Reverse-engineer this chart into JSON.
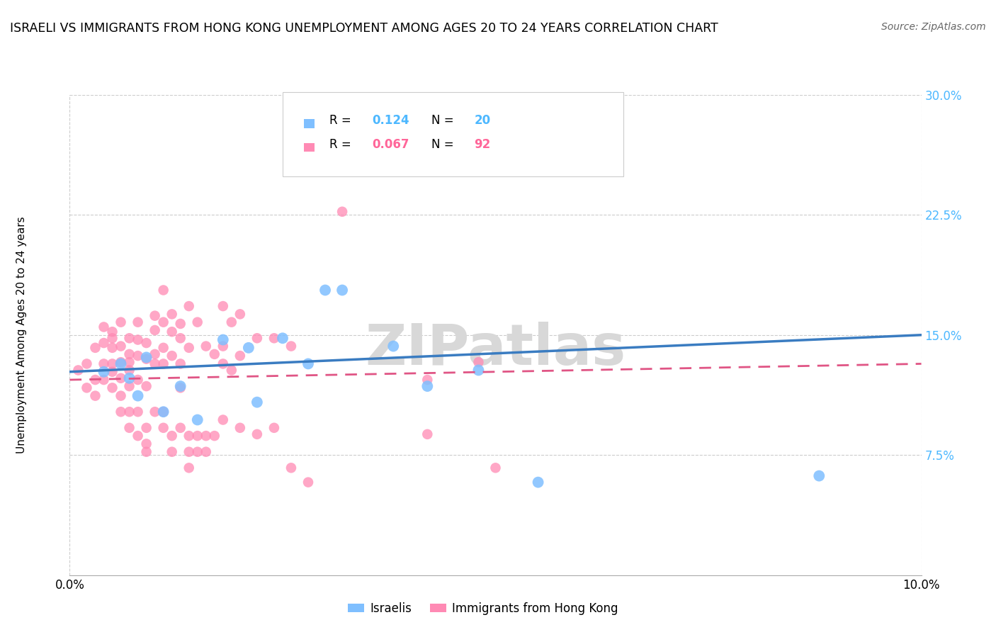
{
  "title": "ISRAELI VS IMMIGRANTS FROM HONG KONG UNEMPLOYMENT AMONG AGES 20 TO 24 YEARS CORRELATION CHART",
  "source": "Source: ZipAtlas.com",
  "ylabel": "Unemployment Among Ages 20 to 24 years",
  "xlim": [
    0.0,
    0.1
  ],
  "ylim": [
    0.0,
    0.3
  ],
  "ytick_values": [
    0.075,
    0.15,
    0.225,
    0.3
  ],
  "ytick_labels": [
    "7.5%",
    "15.0%",
    "22.5%",
    "30.0%"
  ],
  "xtick_values": [
    0.0,
    0.1
  ],
  "xtick_labels": [
    "0.0%",
    "10.0%"
  ],
  "israeli_color": "#7fbfff",
  "hk_color": "#ff8ab4",
  "watermark_text": "ZIPatlas",
  "watermark_color": "#d8d8d8",
  "israeli_points": [
    [
      0.004,
      0.127
    ],
    [
      0.006,
      0.132
    ],
    [
      0.007,
      0.123
    ],
    [
      0.008,
      0.112
    ],
    [
      0.009,
      0.136
    ],
    [
      0.011,
      0.102
    ],
    [
      0.013,
      0.118
    ],
    [
      0.015,
      0.097
    ],
    [
      0.018,
      0.147
    ],
    [
      0.021,
      0.142
    ],
    [
      0.022,
      0.108
    ],
    [
      0.025,
      0.148
    ],
    [
      0.028,
      0.132
    ],
    [
      0.03,
      0.178
    ],
    [
      0.032,
      0.178
    ],
    [
      0.038,
      0.143
    ],
    [
      0.042,
      0.118
    ],
    [
      0.048,
      0.128
    ],
    [
      0.055,
      0.058
    ],
    [
      0.088,
      0.062
    ]
  ],
  "hk_points": [
    [
      0.001,
      0.128
    ],
    [
      0.002,
      0.132
    ],
    [
      0.002,
      0.117
    ],
    [
      0.003,
      0.122
    ],
    [
      0.003,
      0.112
    ],
    [
      0.003,
      0.142
    ],
    [
      0.004,
      0.132
    ],
    [
      0.004,
      0.145
    ],
    [
      0.004,
      0.155
    ],
    [
      0.004,
      0.122
    ],
    [
      0.005,
      0.148
    ],
    [
      0.005,
      0.132
    ],
    [
      0.005,
      0.127
    ],
    [
      0.005,
      0.117
    ],
    [
      0.005,
      0.152
    ],
    [
      0.005,
      0.142
    ],
    [
      0.006,
      0.133
    ],
    [
      0.006,
      0.123
    ],
    [
      0.006,
      0.112
    ],
    [
      0.006,
      0.102
    ],
    [
      0.006,
      0.158
    ],
    [
      0.006,
      0.143
    ],
    [
      0.007,
      0.133
    ],
    [
      0.007,
      0.102
    ],
    [
      0.007,
      0.092
    ],
    [
      0.007,
      0.148
    ],
    [
      0.007,
      0.138
    ],
    [
      0.007,
      0.128
    ],
    [
      0.007,
      0.118
    ],
    [
      0.008,
      0.158
    ],
    [
      0.008,
      0.147
    ],
    [
      0.008,
      0.137
    ],
    [
      0.008,
      0.122
    ],
    [
      0.008,
      0.102
    ],
    [
      0.008,
      0.087
    ],
    [
      0.009,
      0.145
    ],
    [
      0.009,
      0.135
    ],
    [
      0.009,
      0.118
    ],
    [
      0.009,
      0.092
    ],
    [
      0.009,
      0.082
    ],
    [
      0.009,
      0.077
    ],
    [
      0.01,
      0.162
    ],
    [
      0.01,
      0.153
    ],
    [
      0.01,
      0.138
    ],
    [
      0.01,
      0.132
    ],
    [
      0.01,
      0.102
    ],
    [
      0.011,
      0.178
    ],
    [
      0.011,
      0.158
    ],
    [
      0.011,
      0.142
    ],
    [
      0.011,
      0.132
    ],
    [
      0.011,
      0.102
    ],
    [
      0.011,
      0.092
    ],
    [
      0.012,
      0.163
    ],
    [
      0.012,
      0.152
    ],
    [
      0.012,
      0.137
    ],
    [
      0.012,
      0.087
    ],
    [
      0.012,
      0.077
    ],
    [
      0.013,
      0.157
    ],
    [
      0.013,
      0.148
    ],
    [
      0.013,
      0.132
    ],
    [
      0.013,
      0.117
    ],
    [
      0.013,
      0.092
    ],
    [
      0.014,
      0.168
    ],
    [
      0.014,
      0.142
    ],
    [
      0.014,
      0.087
    ],
    [
      0.014,
      0.077
    ],
    [
      0.014,
      0.067
    ],
    [
      0.015,
      0.158
    ],
    [
      0.015,
      0.087
    ],
    [
      0.015,
      0.077
    ],
    [
      0.016,
      0.143
    ],
    [
      0.016,
      0.087
    ],
    [
      0.016,
      0.077
    ],
    [
      0.017,
      0.138
    ],
    [
      0.017,
      0.087
    ],
    [
      0.018,
      0.168
    ],
    [
      0.018,
      0.143
    ],
    [
      0.018,
      0.132
    ],
    [
      0.018,
      0.097
    ],
    [
      0.019,
      0.158
    ],
    [
      0.019,
      0.128
    ],
    [
      0.02,
      0.163
    ],
    [
      0.02,
      0.137
    ],
    [
      0.02,
      0.092
    ],
    [
      0.022,
      0.148
    ],
    [
      0.022,
      0.088
    ],
    [
      0.024,
      0.148
    ],
    [
      0.024,
      0.092
    ],
    [
      0.026,
      0.143
    ],
    [
      0.026,
      0.067
    ],
    [
      0.028,
      0.058
    ],
    [
      0.032,
      0.227
    ],
    [
      0.042,
      0.122
    ],
    [
      0.042,
      0.088
    ],
    [
      0.048,
      0.133
    ],
    [
      0.05,
      0.067
    ]
  ],
  "israeli_trend": [
    0.0,
    0.127,
    0.1,
    0.15
  ],
  "hk_trend": [
    0.0,
    0.122,
    0.1,
    0.132
  ]
}
